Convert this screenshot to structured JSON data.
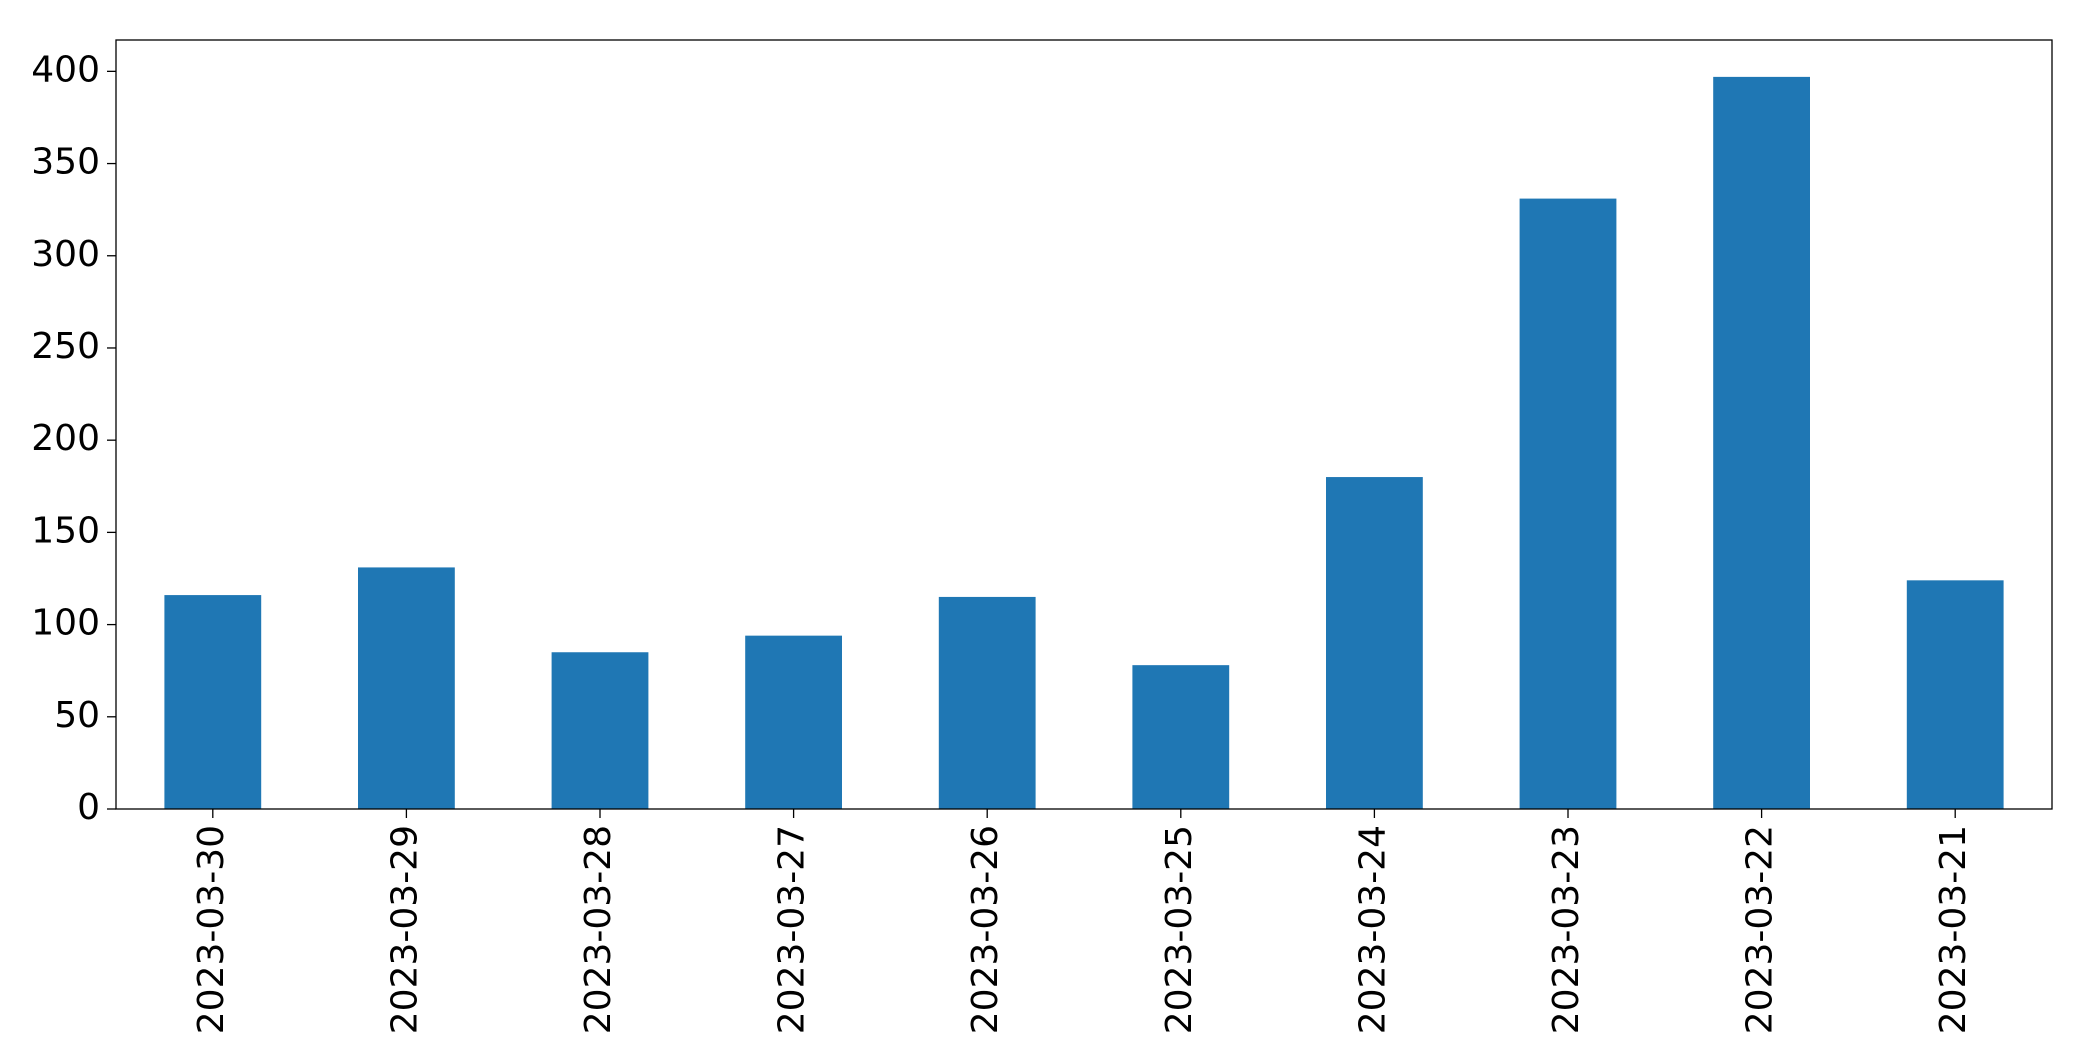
{
  "chart_data": {
    "type": "bar",
    "categories": [
      "2023-03-30",
      "2023-03-29",
      "2023-03-28",
      "2023-03-27",
      "2023-03-26",
      "2023-03-25",
      "2023-03-24",
      "2023-03-23",
      "2023-03-22",
      "2023-03-21"
    ],
    "values": [
      116,
      131,
      85,
      94,
      115,
      78,
      180,
      331,
      397,
      124
    ],
    "color": "#1f77b4",
    "ylim": [
      0,
      417
    ],
    "yticks": [
      0,
      50,
      100,
      150,
      200,
      250,
      300,
      350,
      400
    ],
    "grid": false
  }
}
